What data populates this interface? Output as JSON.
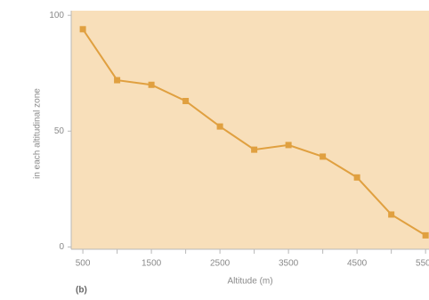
{
  "chart_data": {
    "type": "line",
    "x": [
      500,
      1000,
      1500,
      2000,
      2500,
      3000,
      3500,
      4000,
      4500,
      5000,
      5500
    ],
    "series": [
      {
        "color": "#e0a040",
        "values": [
          94,
          72,
          70,
          63,
          52,
          42,
          44,
          39,
          30,
          14,
          5
        ]
      }
    ],
    "xlim": [
      330,
      5550
    ],
    "ylim": [
      -1,
      102
    ],
    "xticks": [
      500,
      1500,
      2500,
      3500,
      4500,
      5500
    ],
    "xminor": [
      1000,
      2000,
      3000,
      4000,
      5000
    ],
    "yticks": [
      0,
      50,
      100
    ],
    "xlabel": "Altitude (m)",
    "ylabel": "in each altitudinal zone",
    "panel": "(b)",
    "background": "#f8dfba"
  }
}
